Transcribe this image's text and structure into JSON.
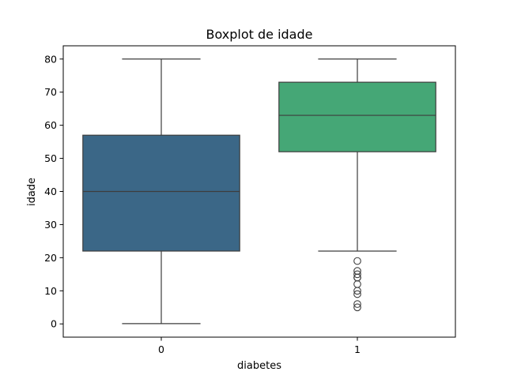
{
  "chart_data": {
    "type": "box",
    "title": "Boxplot de idade",
    "xlabel": "diabetes",
    "ylabel": "idade",
    "categories": [
      "0",
      "1"
    ],
    "ylim": [
      -4,
      84
    ],
    "yticks": [
      0,
      10,
      20,
      30,
      40,
      50,
      60,
      70,
      80
    ],
    "grid": false,
    "boxes": [
      {
        "category": "0",
        "color": "#3b6787",
        "whisker_low": 0.08,
        "q1": 22,
        "median": 40,
        "q3": 57,
        "whisker_high": 80,
        "outliers": []
      },
      {
        "category": "1",
        "color": "#45a776",
        "whisker_low": 22,
        "q1": 52,
        "median": 63,
        "q3": 73,
        "whisker_high": 80,
        "outliers": [
          19,
          16,
          15,
          14,
          14,
          12,
          10,
          9,
          6,
          5
        ]
      }
    ]
  }
}
